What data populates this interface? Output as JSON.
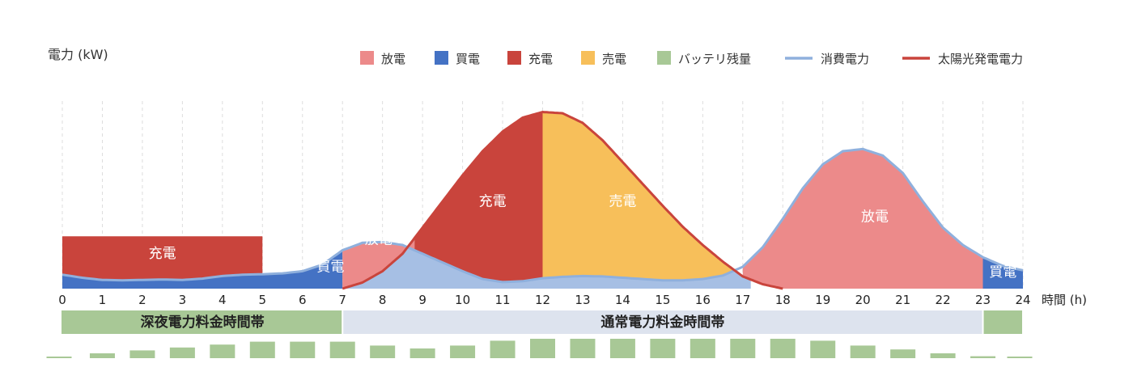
{
  "chart_data": {
    "type": "area",
    "ylabel": "電力 (kW)",
    "xlabel": "時間 (h)",
    "xlim": [
      0,
      24
    ],
    "ylim": [
      0,
      4.3
    ],
    "x_ticks": [
      "0",
      "1",
      "2",
      "3",
      "4",
      "5",
      "6",
      "7",
      "8",
      "9",
      "10",
      "11",
      "12",
      "13",
      "14",
      "15",
      "16",
      "17",
      "18",
      "19",
      "20",
      "21",
      "22",
      "23",
      "24"
    ],
    "grid": "vertical dashed",
    "legend_position": "top",
    "legend": [
      {
        "key": "discharge",
        "label": "放電",
        "kind": "box",
        "color": "#ec8a8a"
      },
      {
        "key": "buy",
        "label": "買電",
        "kind": "box",
        "color": "#4472c4"
      },
      {
        "key": "charge",
        "label": "充電",
        "kind": "box",
        "color": "#c9443c"
      },
      {
        "key": "sell",
        "label": "売電",
        "kind": "box",
        "color": "#f7bf5a"
      },
      {
        "key": "battery",
        "label": "バッテリ残量",
        "kind": "box",
        "color": "#a8c896"
      },
      {
        "key": "consumption",
        "label": "消費電力",
        "kind": "line",
        "color": "#8fb0dd"
      },
      {
        "key": "solar",
        "label": "太陽光発電電力",
        "kind": "line",
        "color": "#c9443c"
      }
    ],
    "consumption": {
      "x": [
        0,
        0.5,
        1,
        1.5,
        2,
        2.5,
        3,
        3.5,
        4,
        4.5,
        5,
        5.5,
        6,
        6.5,
        7,
        7.5,
        8,
        8.5,
        9,
        9.5,
        10,
        10.5,
        11,
        11.5,
        12,
        12.5,
        13,
        13.5,
        14,
        14.5,
        15,
        15.5,
        16,
        16.5,
        17,
        17.5,
        18,
        18.5,
        19,
        19.5,
        20,
        20.5,
        21,
        21.5,
        22,
        22.5,
        23,
        23.5,
        24
      ],
      "y": [
        0.32,
        0.25,
        0.2,
        0.19,
        0.2,
        0.21,
        0.2,
        0.23,
        0.29,
        0.32,
        0.33,
        0.35,
        0.4,
        0.55,
        0.88,
        1.05,
        1.07,
        1.0,
        0.8,
        0.6,
        0.4,
        0.22,
        0.15,
        0.17,
        0.24,
        0.27,
        0.29,
        0.28,
        0.25,
        0.22,
        0.19,
        0.19,
        0.22,
        0.3,
        0.5,
        0.95,
        1.6,
        2.3,
        2.85,
        3.15,
        3.2,
        3.05,
        2.65,
        2.0,
        1.4,
        1.0,
        0.72,
        0.52,
        0.42
      ]
    },
    "solar": {
      "x": [
        7,
        7.5,
        8,
        8.5,
        9,
        9.5,
        10,
        10.5,
        11,
        11.5,
        12,
        12.5,
        13,
        13.5,
        14,
        14.5,
        15,
        15.5,
        16,
        16.5,
        17,
        17.5,
        18
      ],
      "y": [
        0.0,
        0.14,
        0.4,
        0.8,
        1.4,
        2.0,
        2.6,
        3.15,
        3.6,
        3.92,
        4.05,
        4.02,
        3.8,
        3.4,
        2.9,
        2.4,
        1.9,
        1.42,
        1.0,
        0.62,
        0.28,
        0.1,
        0.0
      ]
    },
    "night_charge": {
      "x_start": 0,
      "x_end": 5,
      "value": 1.2
    },
    "area_labels": [
      {
        "text": "充電",
        "x": 2.5,
        "y": 0.7
      },
      {
        "text": "買電",
        "x": 6.7,
        "y": 0.4
      },
      {
        "text": "放電",
        "x": 7.9,
        "y": 1.03
      },
      {
        "text": "充電",
        "x": 10.75,
        "y": 1.9
      },
      {
        "text": "売電",
        "x": 14.0,
        "y": 1.9
      },
      {
        "text": "放電",
        "x": 20.3,
        "y": 1.55
      },
      {
        "text": "買電",
        "x": 23.5,
        "y": 0.28
      }
    ],
    "tariff_bands": [
      {
        "label": "深夜電力料金時間帯",
        "x_start": 0,
        "x_end": 7,
        "color": "#a8c896"
      },
      {
        "label": "通常電力料金時間帯",
        "x_start": 7,
        "x_end": 23,
        "color": "#dde3ee"
      },
      {
        "label": "",
        "x_start": 23,
        "x_end": 24,
        "color": "#a8c896"
      }
    ],
    "battery_level": {
      "x": [
        0,
        1,
        2,
        3,
        4,
        5,
        6,
        7,
        8,
        9,
        10,
        11,
        12,
        13,
        14,
        15,
        16,
        17,
        18,
        19,
        20,
        21,
        22,
        23,
        24
      ],
      "values": [
        0.08,
        0.25,
        0.4,
        0.55,
        0.7,
        0.85,
        0.85,
        0.85,
        0.65,
        0.5,
        0.65,
        0.9,
        1.0,
        1.0,
        1.0,
        1.0,
        1.0,
        1.0,
        1.0,
        0.9,
        0.65,
        0.45,
        0.25,
        0.1,
        0.08
      ]
    }
  }
}
